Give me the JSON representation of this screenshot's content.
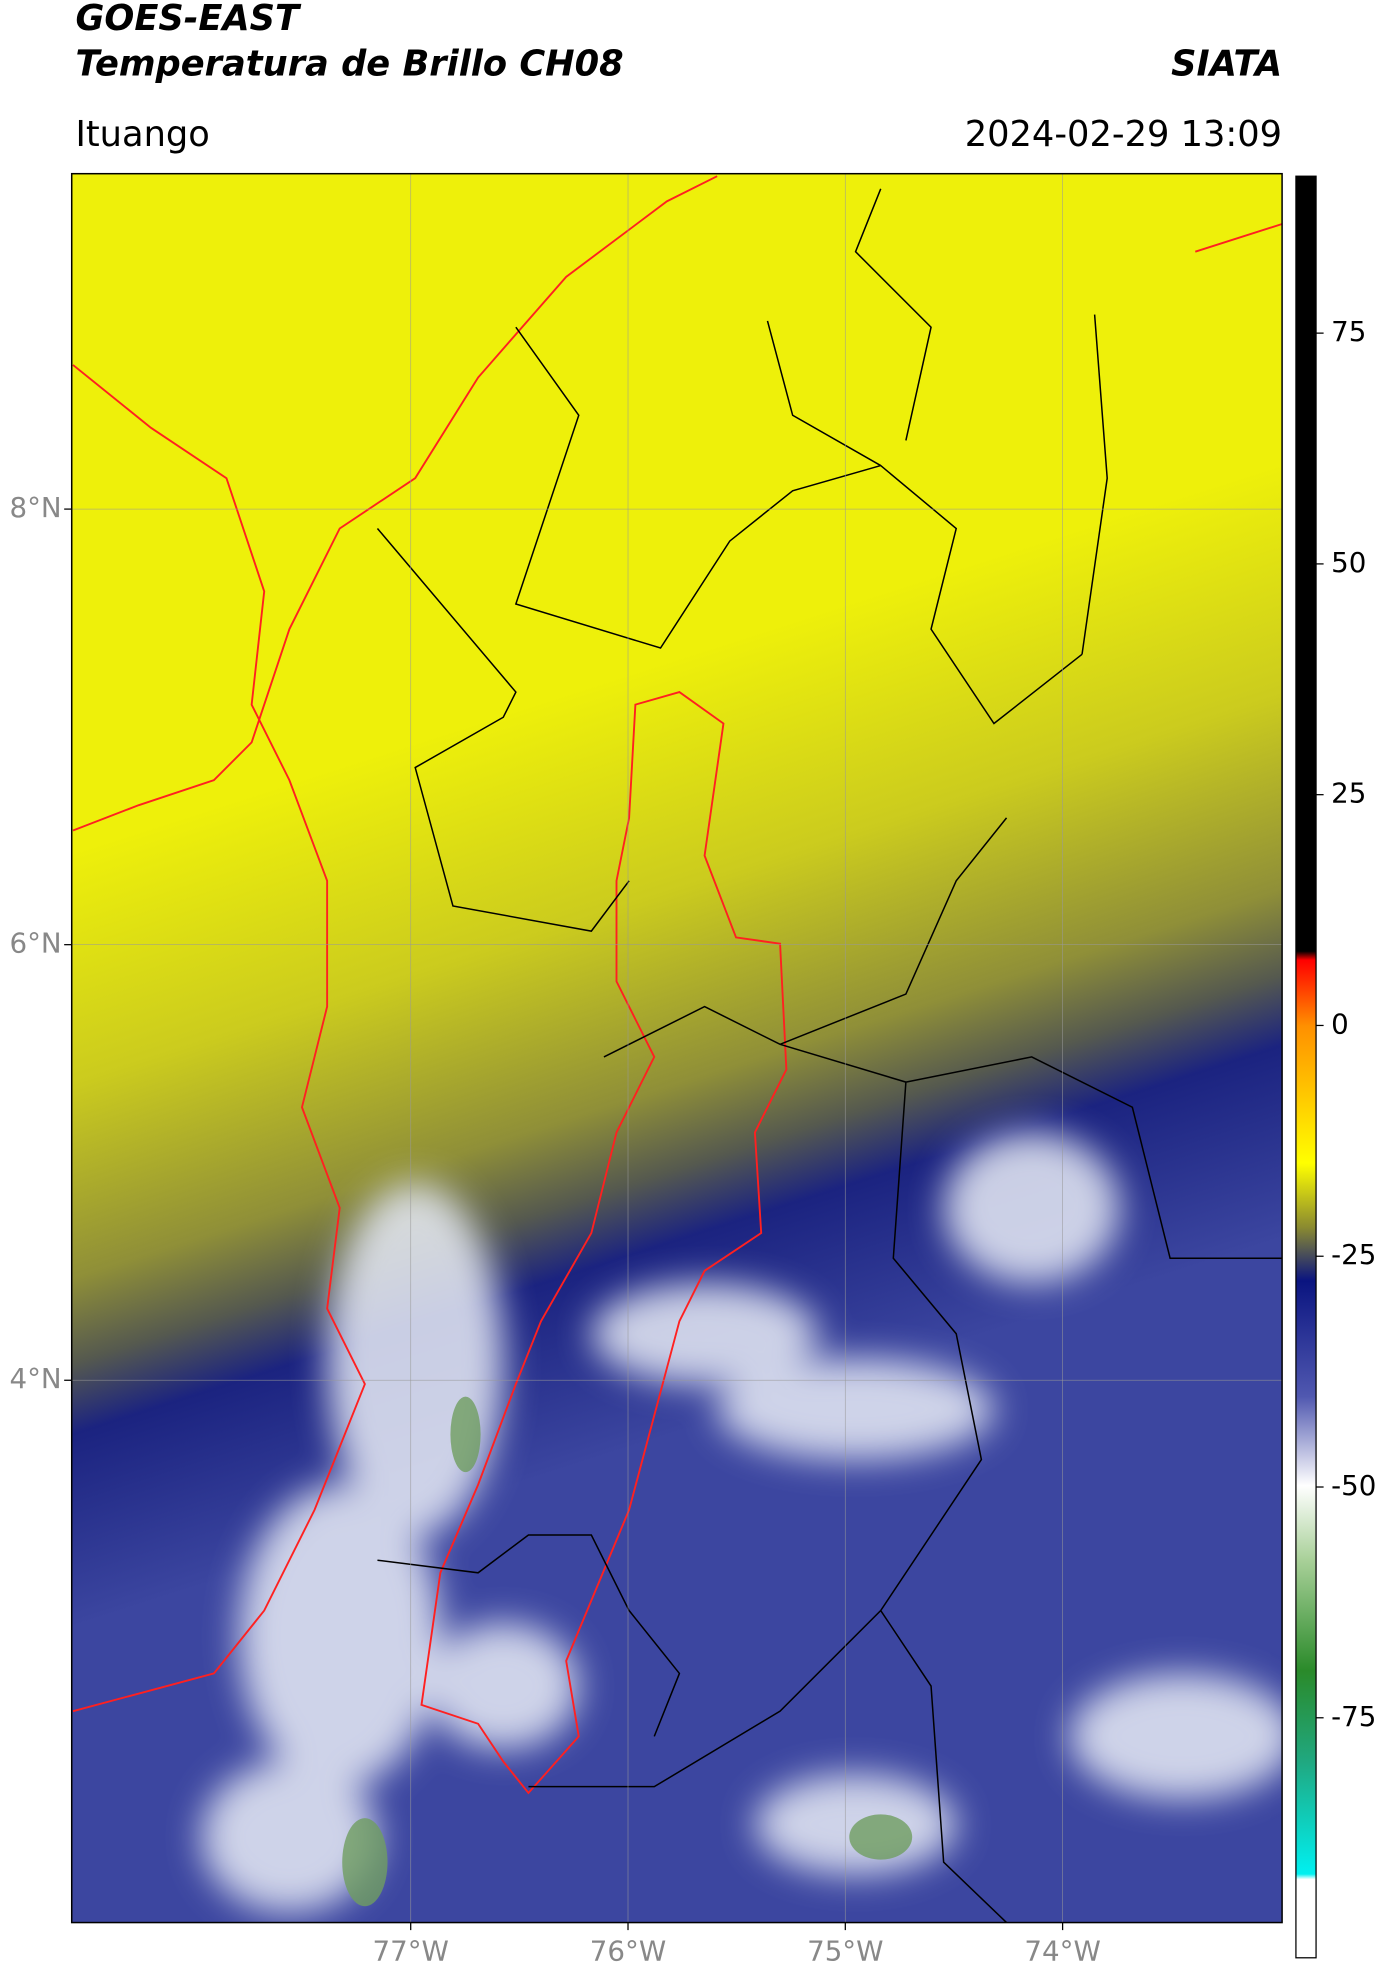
{
  "header": {
    "title": "GOES-EAST",
    "subtitle": "Temperatura de Brillo CH08",
    "source": "SIATA",
    "location": "Ituango",
    "datetime": "2024-02-29 13:09"
  },
  "map": {
    "xlim": [
      -78.56,
      -72.99
    ],
    "ylim": [
      1.51,
      9.54
    ],
    "lat_ticks": [
      {
        "value": 8,
        "label": "8°N"
      },
      {
        "value": 6,
        "label": "6°N"
      },
      {
        "value": 4,
        "label": "4°N"
      }
    ],
    "lon_ticks": [
      {
        "value": -77,
        "label": "77°W"
      },
      {
        "value": -76,
        "label": "76°W"
      },
      {
        "value": -75,
        "label": "75°W"
      },
      {
        "value": -74,
        "label": "74°W"
      }
    ]
  },
  "colorbar": {
    "lim": [
      -101,
      92
    ],
    "ticks": [
      75,
      50,
      25,
      0,
      -25,
      -50,
      -75
    ]
  }
}
